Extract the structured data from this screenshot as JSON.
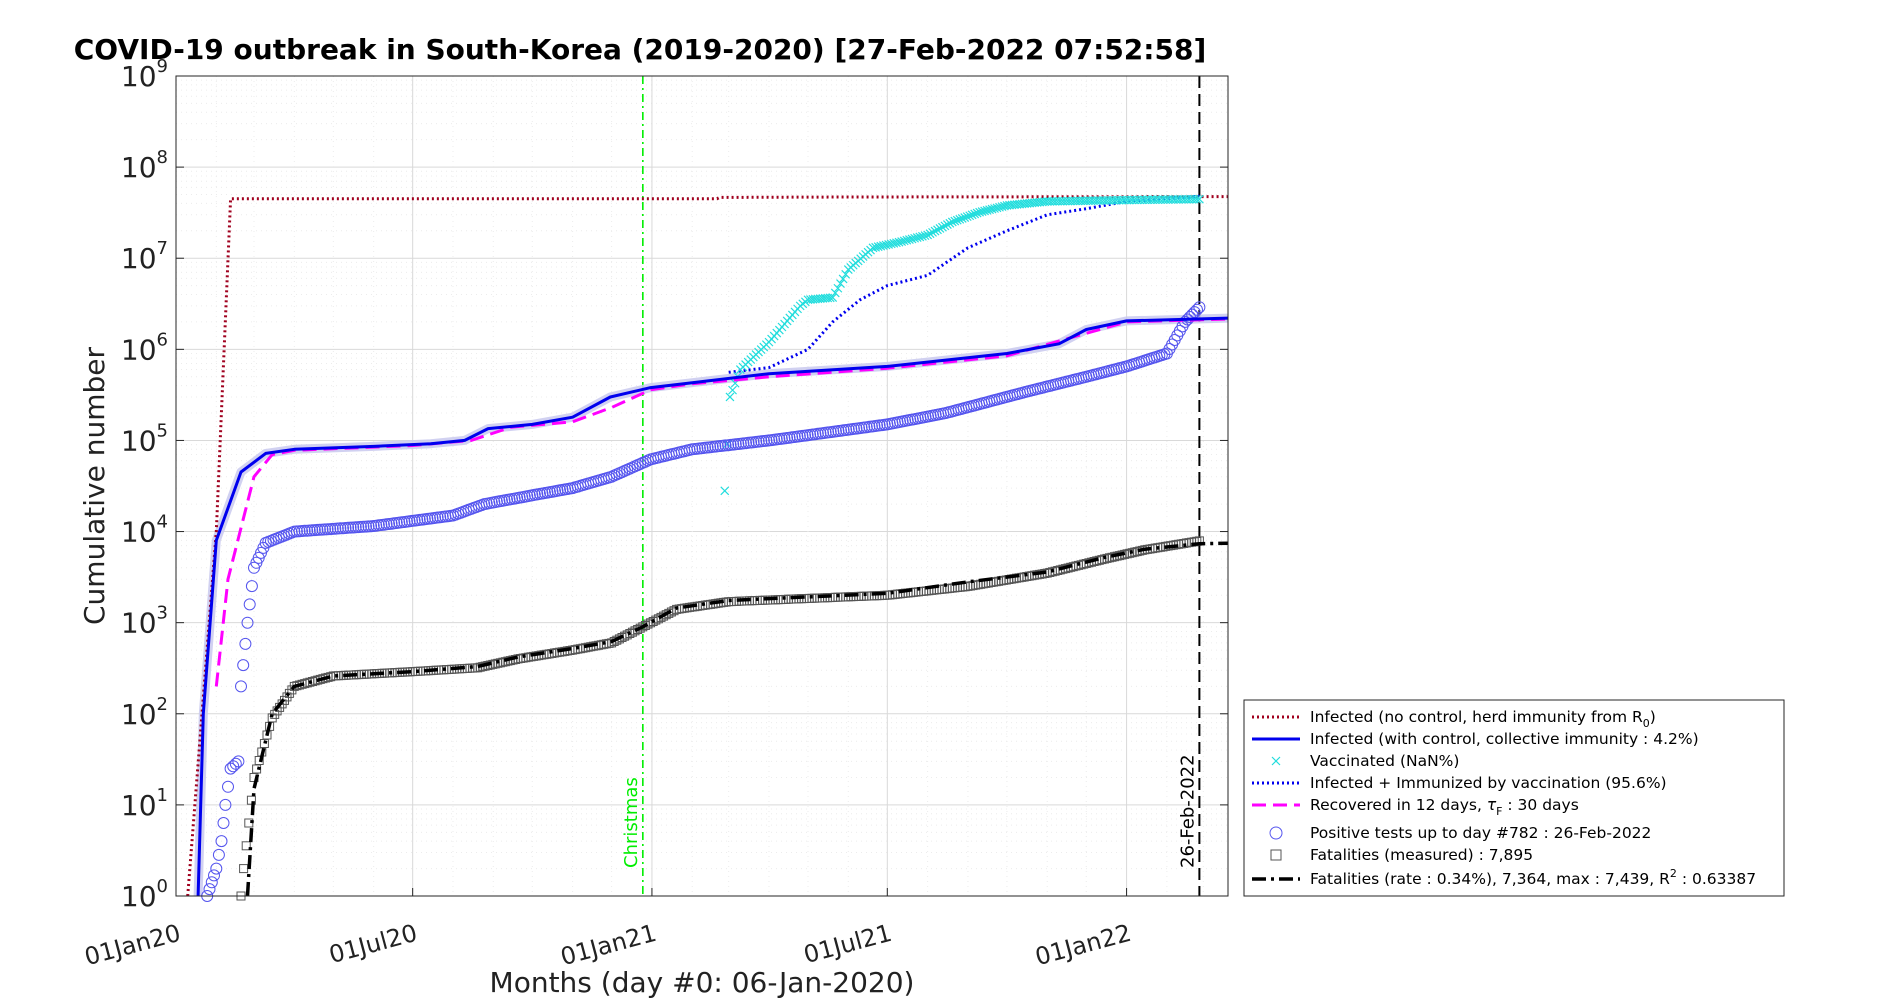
{
  "chart_data": {
    "type": "line",
    "title": "COVID-19 outbreak in South-Korea (2019-2020) [27-Feb-2022 07:52:58]",
    "xlabel": "Months (day #0: 06-Jan-2020)",
    "ylabel": "Cumulative number",
    "y_scale": "log",
    "ylim": [
      1,
      1000000000
    ],
    "xlim": [
      "2020-01-01",
      "2022-03-20"
    ],
    "grid": true,
    "legend_position": "bottom-right, outside",
    "x_ticks": [
      {
        "date": "2020-01-01",
        "label": "01Jan20"
      },
      {
        "date": "2020-07-01",
        "label": "01Jul20"
      },
      {
        "date": "2021-01-01",
        "label": "01Jan21"
      },
      {
        "date": "2021-07-01",
        "label": "01Jul21"
      },
      {
        "date": "2022-01-01",
        "label": "01Jan22"
      }
    ],
    "y_ticks": [
      {
        "value": 1,
        "base": "10",
        "exp": "0"
      },
      {
        "value": 10,
        "base": "10",
        "exp": "1"
      },
      {
        "value": 100,
        "base": "10",
        "exp": "2"
      },
      {
        "value": 1000,
        "base": "10",
        "exp": "3"
      },
      {
        "value": 10000,
        "base": "10",
        "exp": "4"
      },
      {
        "value": 100000,
        "base": "10",
        "exp": "5"
      },
      {
        "value": 1000000,
        "base": "10",
        "exp": "6"
      },
      {
        "value": 10000000,
        "base": "10",
        "exp": "7"
      },
      {
        "value": 100000000,
        "base": "10",
        "exp": "8"
      },
      {
        "value": 1000000000,
        "base": "10",
        "exp": "9"
      }
    ],
    "vertical_lines": [
      {
        "date": "2020-12-25",
        "label": "Christmas",
        "color": "#00ee00"
      },
      {
        "date": "2022-02-26",
        "label": "26-Feb-2022",
        "color": "#000000"
      }
    ],
    "series": [
      {
        "key": "no_control",
        "legend": "Infected (no control, herd immunity from R",
        "legend_sub": "0",
        "legend_tail": ")",
        "color": "#a0001e",
        "style": "dotted",
        "points": [
          [
            "2020-01-10",
            1
          ],
          [
            "2020-02-01",
            10000
          ],
          [
            "2020-02-12",
            45000000
          ],
          [
            "2021-02-20",
            45000000
          ],
          [
            "2021-02-22",
            46500000
          ],
          [
            "2021-06-01",
            47000000
          ],
          [
            "2022-03-20",
            47500000
          ]
        ]
      },
      {
        "key": "with_control",
        "legend": "Infected (with control, collective immunity : 4.2%)",
        "color": "#0000ee",
        "style": "solid",
        "points": [
          [
            "2020-01-18",
            1
          ],
          [
            "2020-01-22",
            100
          ],
          [
            "2020-02-01",
            8000
          ],
          [
            "2020-02-20",
            45000
          ],
          [
            "2020-03-10",
            72000
          ],
          [
            "2020-04-01",
            80000
          ],
          [
            "2020-06-01",
            86000
          ],
          [
            "2020-07-15",
            92000
          ],
          [
            "2020-08-10",
            100000
          ],
          [
            "2020-08-28",
            135000
          ],
          [
            "2020-10-01",
            150000
          ],
          [
            "2020-11-01",
            180000
          ],
          [
            "2020-11-30",
            300000
          ],
          [
            "2020-12-31",
            380000
          ],
          [
            "2021-02-01",
            430000
          ],
          [
            "2021-04-01",
            540000
          ],
          [
            "2021-07-01",
            650000
          ],
          [
            "2021-10-01",
            900000
          ],
          [
            "2021-11-10",
            1150000
          ],
          [
            "2021-12-01",
            1650000
          ],
          [
            "2022-01-01",
            2050000
          ],
          [
            "2022-03-20",
            2200000
          ]
        ]
      },
      {
        "key": "vaccinated",
        "legend": "Vaccinated (NaN%)",
        "color": "#22dddd",
        "style": "x-markers",
        "points": [
          [
            "2021-02-26",
            28000
          ],
          [
            "2021-03-02",
            300000
          ],
          [
            "2021-03-10",
            600000
          ],
          [
            "2021-04-01",
            1200000
          ],
          [
            "2021-04-25",
            3000000
          ],
          [
            "2021-05-01",
            3500000
          ],
          [
            "2021-05-20",
            3700000
          ],
          [
            "2021-06-01",
            7500000
          ],
          [
            "2021-06-20",
            13000000
          ],
          [
            "2021-07-10",
            15000000
          ],
          [
            "2021-08-01",
            18000000
          ],
          [
            "2021-08-20",
            25000000
          ],
          [
            "2021-09-10",
            32000000
          ],
          [
            "2021-10-01",
            38000000
          ],
          [
            "2021-11-01",
            42000000
          ],
          [
            "2022-01-01",
            43500000
          ],
          [
            "2022-02-26",
            44500000
          ]
        ]
      },
      {
        "key": "immunized",
        "legend": "Infected + Immunized by vaccination (95.6%)",
        "color": "#0000ee",
        "style": "dotted",
        "points": [
          [
            "2021-03-01",
            560000
          ],
          [
            "2021-04-01",
            630000
          ],
          [
            "2021-05-01",
            1000000
          ],
          [
            "2021-05-20",
            2000000
          ],
          [
            "2021-06-10",
            3500000
          ],
          [
            "2021-07-01",
            5000000
          ],
          [
            "2021-08-01",
            6500000
          ],
          [
            "2021-09-01",
            13000000
          ],
          [
            "2021-10-01",
            20000000
          ],
          [
            "2021-11-01",
            30000000
          ],
          [
            "2021-12-01",
            35000000
          ],
          [
            "2022-01-01",
            42000000
          ],
          [
            "2022-02-26",
            48000000
          ]
        ]
      },
      {
        "key": "recovered",
        "legend": "Recovered in 12 days, ",
        "legend_tau": "τ",
        "legend_tau_sub": "F",
        "legend_tail": " : 30 days",
        "color": "#ff00ff",
        "style": "dashed",
        "points": [
          [
            "2020-02-01",
            200
          ],
          [
            "2020-02-10",
            3000
          ],
          [
            "2020-03-01",
            40000
          ],
          [
            "2020-03-15",
            70000
          ],
          [
            "2020-04-01",
            78000
          ],
          [
            "2020-07-01",
            88000
          ],
          [
            "2020-08-15",
            100000
          ],
          [
            "2020-09-15",
            140000
          ],
          [
            "2020-11-01",
            160000
          ],
          [
            "2020-12-01",
            230000
          ],
          [
            "2020-12-31",
            360000
          ],
          [
            "2021-02-01",
            420000
          ],
          [
            "2021-04-01",
            500000
          ],
          [
            "2021-07-01",
            620000
          ],
          [
            "2021-10-01",
            850000
          ],
          [
            "2021-12-01",
            1500000
          ],
          [
            "2022-01-01",
            2000000
          ],
          [
            "2022-03-20",
            2150000
          ]
        ]
      },
      {
        "key": "positive_tests",
        "legend": "Positive tests up to day #782 : 26-Feb-2022",
        "color": "#5555ee",
        "style": "circle-markers",
        "points": [
          [
            "2020-01-25",
            1
          ],
          [
            "2020-02-01",
            2
          ],
          [
            "2020-02-05",
            4
          ],
          [
            "2020-02-08",
            10
          ],
          [
            "2020-02-12",
            25
          ],
          [
            "2020-02-18",
            30
          ],
          [
            "2020-02-20",
            200
          ],
          [
            "2020-02-25",
            1000
          ],
          [
            "2020-03-01",
            4000
          ],
          [
            "2020-03-10",
            7500
          ],
          [
            "2020-04-01",
            10000
          ],
          [
            "2020-06-01",
            11500
          ],
          [
            "2020-08-01",
            15000
          ],
          [
            "2020-08-25",
            20000
          ],
          [
            "2020-10-01",
            25000
          ],
          [
            "2020-11-01",
            30000
          ],
          [
            "2020-12-01",
            40000
          ],
          [
            "2020-12-31",
            62000
          ],
          [
            "2021-02-01",
            80000
          ],
          [
            "2021-04-01",
            100000
          ],
          [
            "2021-07-01",
            150000
          ],
          [
            "2021-08-15",
            200000
          ],
          [
            "2021-10-15",
            340000
          ],
          [
            "2021-12-01",
            500000
          ],
          [
            "2022-01-01",
            650000
          ],
          [
            "2022-02-01",
            900000
          ],
          [
            "2022-02-15",
            2000000
          ],
          [
            "2022-02-26",
            2900000
          ]
        ]
      },
      {
        "key": "fatalities_measured",
        "legend": "Fatalities (measured) : 7,895",
        "color": "#555555",
        "style": "square-markers",
        "points": [
          [
            "2020-02-20",
            1
          ],
          [
            "2020-02-22",
            2
          ],
          [
            "2020-03-01",
            20
          ],
          [
            "2020-03-15",
            90
          ],
          [
            "2020-04-01",
            200
          ],
          [
            "2020-05-01",
            260
          ],
          [
            "2020-07-01",
            290
          ],
          [
            "2020-08-20",
            320
          ],
          [
            "2020-09-20",
            400
          ],
          [
            "2020-11-01",
            500
          ],
          [
            "2020-12-01",
            600
          ],
          [
            "2020-12-25",
            900
          ],
          [
            "2021-01-20",
            1400
          ],
          [
            "2021-03-01",
            1700
          ],
          [
            "2021-07-01",
            2000
          ],
          [
            "2021-09-01",
            2500
          ],
          [
            "2021-11-01",
            3500
          ],
          [
            "2021-12-15",
            5000
          ],
          [
            "2022-01-15",
            6300
          ],
          [
            "2022-02-26",
            7895
          ]
        ]
      },
      {
        "key": "fatalities_rate",
        "legend": "Fatalities (rate : 0.34%), 7,364, max : 7,439, R",
        "legend_sup": "2",
        "legend_tail": " : 0.63387",
        "color": "#000000",
        "style": "dash-dot",
        "points": [
          [
            "2020-02-25",
            1
          ],
          [
            "2020-03-01",
            15
          ],
          [
            "2020-03-15",
            100
          ],
          [
            "2020-04-01",
            200
          ],
          [
            "2020-05-01",
            260
          ],
          [
            "2020-07-01",
            290
          ],
          [
            "2020-08-20",
            330
          ],
          [
            "2020-09-20",
            420
          ],
          [
            "2020-11-01",
            520
          ],
          [
            "2020-12-01",
            620
          ],
          [
            "2020-12-25",
            900
          ],
          [
            "2021-01-20",
            1450
          ],
          [
            "2021-03-01",
            1750
          ],
          [
            "2021-07-01",
            2100
          ],
          [
            "2021-09-01",
            2800
          ],
          [
            "2021-11-01",
            3600
          ],
          [
            "2021-12-15",
            5200
          ],
          [
            "2022-01-15",
            6400
          ],
          [
            "2022-02-26",
            7364
          ],
          [
            "2022-03-20",
            7439
          ]
        ]
      }
    ]
  }
}
